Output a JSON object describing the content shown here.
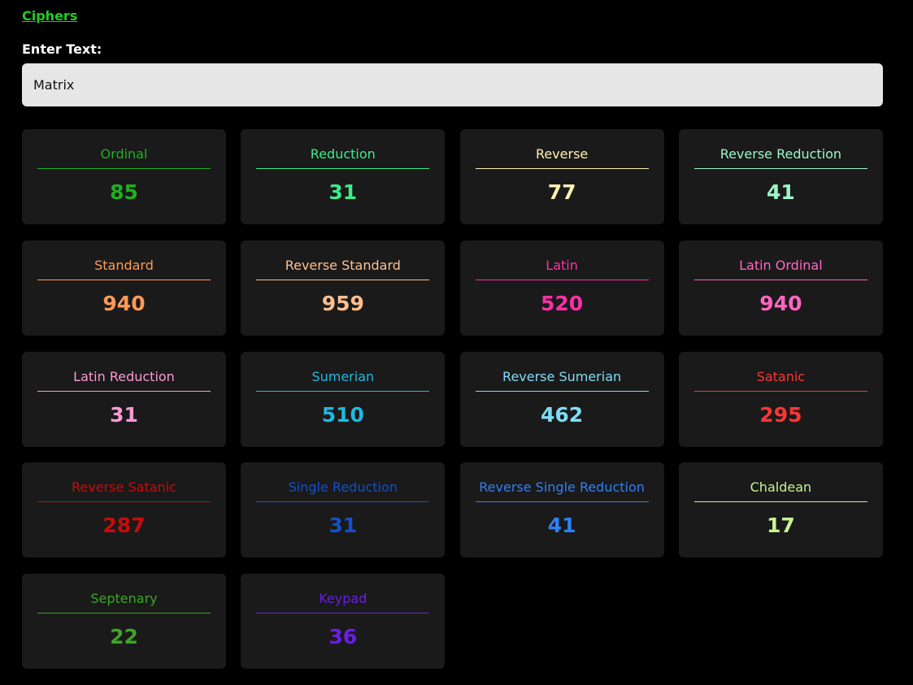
{
  "header": {
    "link_label": "Ciphers"
  },
  "input": {
    "label": "Enter Text:",
    "value": "Matrix"
  },
  "ciphers": [
    {
      "name": "Ordinal",
      "value": "85",
      "color": "#1fb01f"
    },
    {
      "name": "Reduction",
      "value": "31",
      "color": "#3deb8a"
    },
    {
      "name": "Reverse",
      "value": "77",
      "color": "#fff2b3"
    },
    {
      "name": "Reverse Reduction",
      "value": "41",
      "color": "#9ef5c8"
    },
    {
      "name": "Standard",
      "value": "940",
      "color": "#ff9a55"
    },
    {
      "name": "Reverse Standard",
      "value": "959",
      "color": "#ffc090"
    },
    {
      "name": "Latin",
      "value": "520",
      "color": "#ff2fa8"
    },
    {
      "name": "Latin Ordinal",
      "value": "940",
      "color": "#ff66c0"
    },
    {
      "name": "Latin Reduction",
      "value": "31",
      "color": "#ff99d6"
    },
    {
      "name": "Sumerian",
      "value": "510",
      "color": "#20b8e0"
    },
    {
      "name": "Reverse Sumerian",
      "value": "462",
      "color": "#80dcf5"
    },
    {
      "name": "Satanic",
      "value": "295",
      "color": "#ff3535"
    },
    {
      "name": "Reverse Satanic",
      "value": "287",
      "color": "#cc0a0a"
    },
    {
      "name": "Single Reduction",
      "value": "31",
      "color": "#1450c8"
    },
    {
      "name": "Reverse Single Reduction",
      "value": "41",
      "color": "#3080f5"
    },
    {
      "name": "Chaldean",
      "value": "17",
      "color": "#c8f590"
    },
    {
      "name": "Septenary",
      "value": "22",
      "color": "#3fa42a"
    },
    {
      "name": "Keypad",
      "value": "36",
      "color": "#6a1ee6"
    }
  ]
}
